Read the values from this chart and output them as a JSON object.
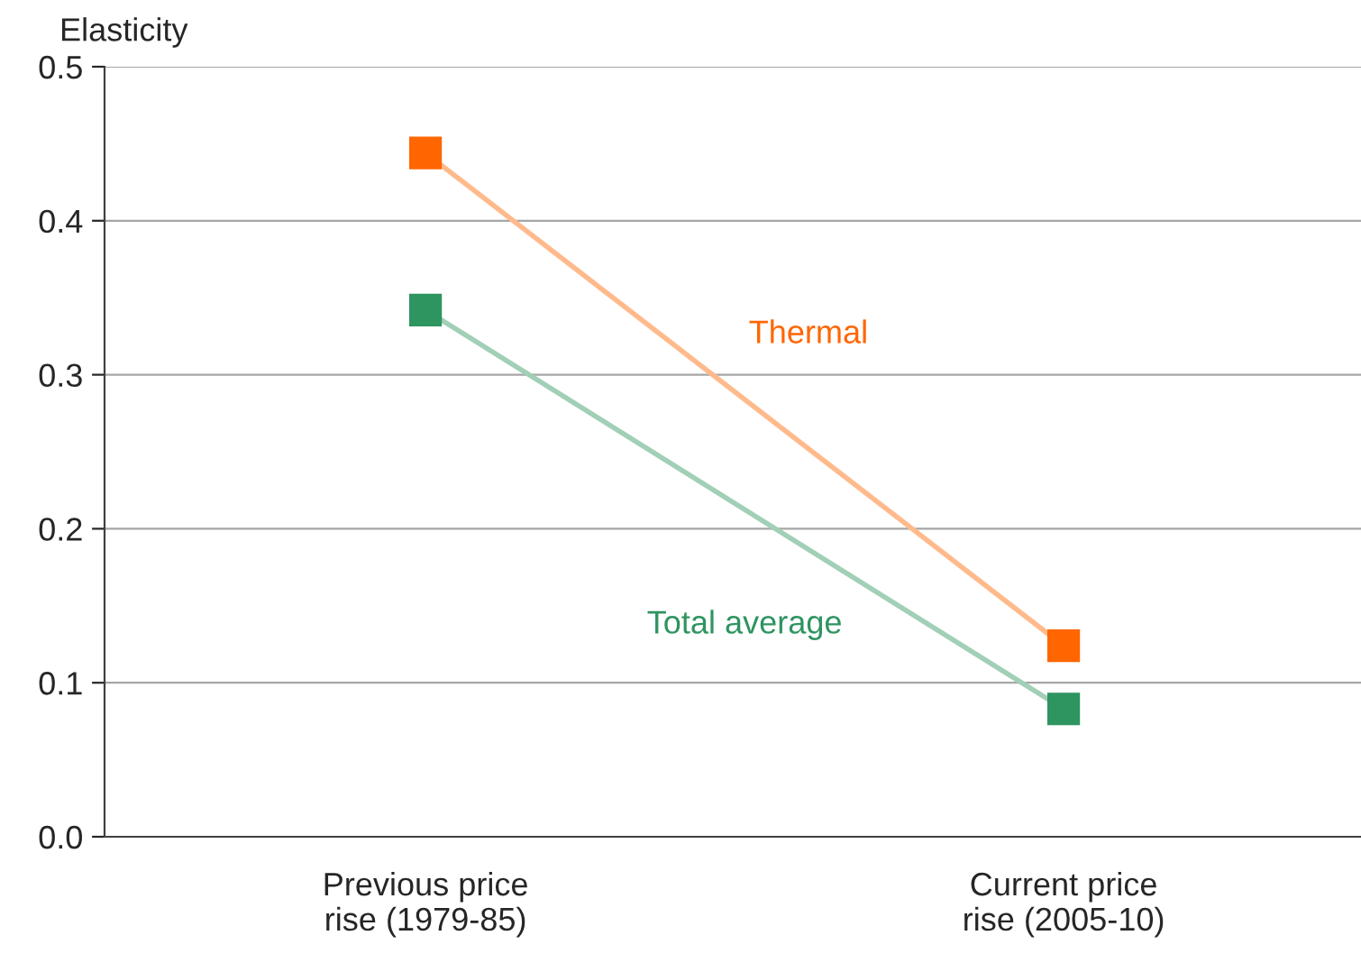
{
  "chart_data": {
    "type": "line",
    "ylabel": "Elasticity",
    "categories": [
      "Previous price\nrise (1979-85)",
      "Current price\nrise (2005-10)"
    ],
    "series": [
      {
        "name": "Thermal",
        "color": "#ff6600",
        "values": [
          0.444,
          0.124
        ]
      },
      {
        "name": "Total average",
        "color": "#2e9460",
        "values": [
          0.342,
          0.083
        ]
      }
    ],
    "ylim": [
      0,
      0.5
    ],
    "yticks": [
      {
        "value": 0,
        "label": "0.0"
      },
      0.1,
      0.2,
      0.3,
      0.4,
      0.5
    ],
    "grid": "y",
    "legend": false,
    "marker": "square"
  }
}
